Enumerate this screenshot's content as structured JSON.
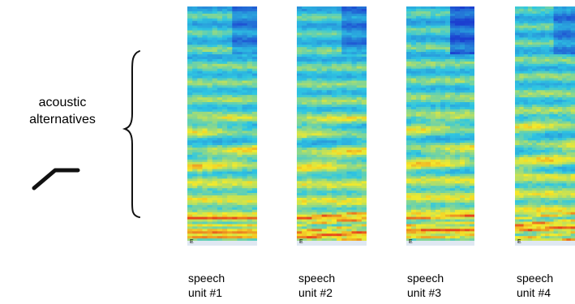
{
  "caption": {
    "line1": "acoustic",
    "line2": "alternatives"
  },
  "units": [
    {
      "line1": "speech",
      "line2": "unit #1",
      "corner_mark": "E"
    },
    {
      "line1": "speech",
      "line2": "unit #2",
      "corner_mark": "E"
    },
    {
      "line1": "speech",
      "line2": "unit #3",
      "corner_mark": "E"
    },
    {
      "line1": "speech",
      "line2": "unit #4",
      "corner_mark": "E"
    }
  ],
  "colors": {
    "low": "#1c3fd0",
    "mid": "#2fc7e2",
    "high": "#f4ea2a",
    "peak": "#e8461c"
  }
}
